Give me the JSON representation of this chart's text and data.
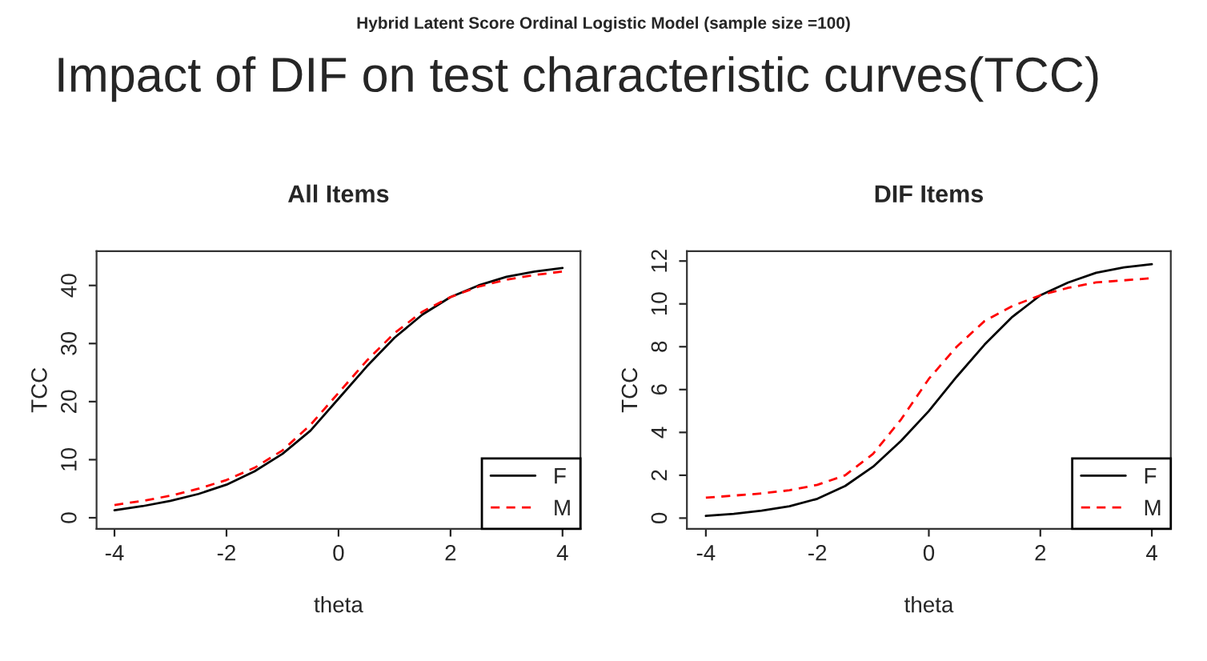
{
  "chart_data": [
    {
      "type": "line",
      "title": "All Items",
      "xlabel": "theta",
      "ylabel": "TCC",
      "annotations": [
        "Hybrid Latent Score Ordinal Logistic Model (sample size =100)",
        "Impact of DIF on test characteristic curves(TCC)"
      ],
      "x": [
        -4,
        -3.5,
        -3,
        -2.5,
        -2,
        -1.5,
        -1,
        -0.5,
        0,
        0.5,
        1,
        1.5,
        2,
        2.5,
        3,
        3.5,
        4
      ],
      "series": [
        {
          "name": "F",
          "color": "#000000",
          "line_style": "solid",
          "values": [
            1.3,
            2,
            2.9,
            4.1,
            5.7,
            8,
            11,
            15,
            20.5,
            26,
            31,
            35,
            38,
            40,
            41.5,
            42.4,
            43
          ]
        },
        {
          "name": "M",
          "color": "#ff0000",
          "line_style": "dashed",
          "values": [
            2.2,
            2.9,
            3.8,
            5,
            6.5,
            8.6,
            11.6,
            16,
            21.5,
            27,
            31.8,
            35.5,
            38,
            39.8,
            41,
            41.8,
            42.4
          ]
        }
      ],
      "xlim": [
        -4.32,
        4.32
      ],
      "ylim": [
        -1.9,
        45.9
      ],
      "xticks": [
        -4,
        -2,
        0,
        2,
        4
      ],
      "yticks": [
        0,
        10,
        20,
        30,
        40
      ],
      "grid": false,
      "legend": "bottom right",
      "marker": "none"
    },
    {
      "type": "line",
      "title": "DIF Items",
      "xlabel": "theta",
      "ylabel": "TCC",
      "x": [
        -4,
        -3.5,
        -3,
        -2.5,
        -2,
        -1.5,
        -1,
        -0.5,
        0,
        0.5,
        1,
        1.5,
        2,
        2.5,
        3,
        3.5,
        4
      ],
      "series": [
        {
          "name": "F",
          "color": "#000000",
          "line_style": "solid",
          "values": [
            0.1,
            0.2,
            0.35,
            0.55,
            0.9,
            1.5,
            2.4,
            3.6,
            5,
            6.6,
            8.1,
            9.4,
            10.4,
            11,
            11.45,
            11.7,
            11.85
          ]
        },
        {
          "name": "M",
          "color": "#ff0000",
          "line_style": "dashed",
          "values": [
            0.95,
            1.05,
            1.15,
            1.3,
            1.55,
            2,
            3,
            4.6,
            6.5,
            8,
            9.2,
            9.9,
            10.4,
            10.75,
            11,
            11.1,
            11.2
          ]
        }
      ],
      "xlim": [
        -4.34,
        4.34
      ],
      "ylim": [
        -0.5,
        12.46
      ],
      "xticks": [
        -4,
        -2,
        0,
        2,
        4
      ],
      "yticks": [
        0,
        2,
        4,
        6,
        8,
        10,
        12
      ],
      "grid": false,
      "legend": "bottom right",
      "marker": "none"
    }
  ]
}
